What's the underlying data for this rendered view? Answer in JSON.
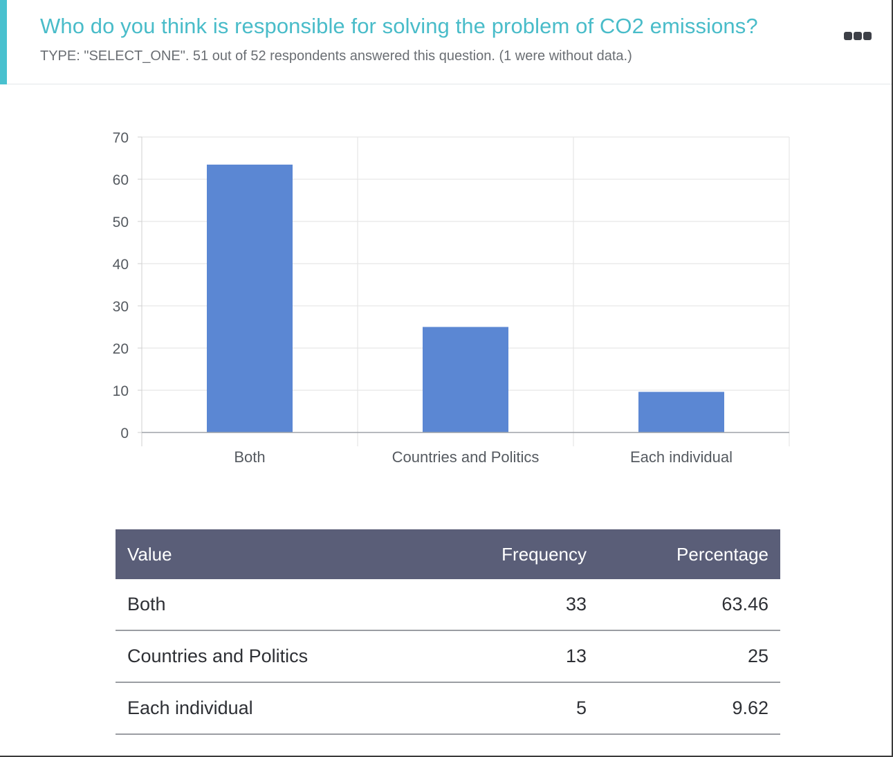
{
  "header": {
    "title": "Who do you think is responsible for solving the problem of CO2 emissions?",
    "subtitle": "TYPE: \"SELECT_ONE\". 51 out of 52 respondents answered this question. (1 were without data.)",
    "menu_icon": "more-horizontal-icon",
    "accent_color": "#49c1cf"
  },
  "chart_data": {
    "type": "bar",
    "categories": [
      "Both",
      "Countries and Politics",
      "Each individual"
    ],
    "values": [
      63.46,
      25,
      9.62
    ],
    "ylim": [
      0,
      70
    ],
    "yticks": [
      "0",
      "10",
      "20",
      "30",
      "40",
      "50",
      "60",
      "70"
    ],
    "xlabel": "",
    "ylabel": "",
    "grid": true,
    "bar_color": "#5b87d3"
  },
  "table": {
    "headers": {
      "value": "Value",
      "frequency": "Frequency",
      "percentage": "Percentage"
    },
    "rows": [
      {
        "value": "Both",
        "frequency": "33",
        "percentage": "63.46"
      },
      {
        "value": "Countries and Politics",
        "frequency": "13",
        "percentage": "25"
      },
      {
        "value": "Each individual",
        "frequency": "5",
        "percentage": "9.62"
      }
    ],
    "header_color": "#5a5e78"
  }
}
